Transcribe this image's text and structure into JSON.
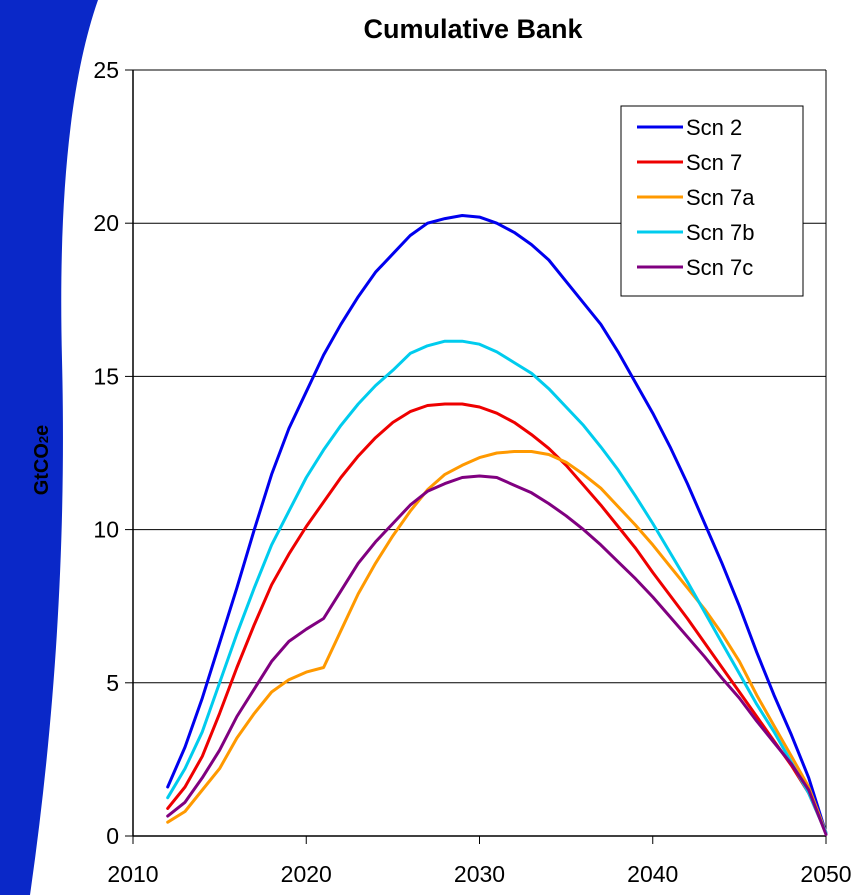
{
  "chart_data": {
    "type": "line",
    "title": "Cumulative Bank",
    "xlabel": "",
    "ylabel": "GtCO2e",
    "ylabel_main": "GtCO",
    "ylabel_sub": "2",
    "ylabel_tail": "e",
    "xlim": [
      2010,
      2050
    ],
    "ylim": [
      0,
      25
    ],
    "xticks": [
      2010,
      2020,
      2030,
      2040,
      2050
    ],
    "yticks": [
      0,
      5,
      10,
      15,
      20,
      25
    ],
    "grid": true,
    "legend_position": "top-right",
    "x": [
      2012,
      2013,
      2014,
      2015,
      2016,
      2017,
      2018,
      2019,
      2020,
      2021,
      2022,
      2023,
      2024,
      2025,
      2026,
      2027,
      2028,
      2029,
      2030,
      2031,
      2032,
      2033,
      2034,
      2035,
      2036,
      2037,
      2038,
      2039,
      2040,
      2041,
      2042,
      2043,
      2044,
      2045,
      2046,
      2047,
      2048,
      2049,
      2050
    ],
    "series": [
      {
        "name": "Scn 2",
        "color": "#0000ee",
        "values": [
          1.6,
          2.9,
          4.5,
          6.3,
          8.1,
          10.0,
          11.8,
          13.3,
          14.5,
          15.7,
          16.7,
          17.6,
          18.4,
          19.0,
          19.6,
          20.0,
          20.15,
          20.25,
          20.2,
          20.0,
          19.7,
          19.3,
          18.8,
          18.1,
          17.4,
          16.7,
          15.8,
          14.8,
          13.8,
          12.7,
          11.5,
          10.2,
          8.9,
          7.5,
          6.0,
          4.6,
          3.3,
          1.9,
          0.1
        ]
      },
      {
        "name": "Scn 7",
        "color": "#ee0000",
        "values": [
          0.9,
          1.6,
          2.6,
          4.0,
          5.5,
          6.9,
          8.2,
          9.2,
          10.1,
          10.9,
          11.7,
          12.4,
          13.0,
          13.5,
          13.85,
          14.05,
          14.1,
          14.1,
          14.0,
          13.8,
          13.5,
          13.1,
          12.65,
          12.1,
          11.45,
          10.8,
          10.1,
          9.4,
          8.6,
          7.85,
          7.1,
          6.3,
          5.5,
          4.7,
          3.9,
          3.1,
          2.3,
          1.4,
          0.1
        ]
      },
      {
        "name": "Scn 7a",
        "color": "#ff9900",
        "values": [
          0.45,
          0.8,
          1.5,
          2.2,
          3.2,
          4.0,
          4.7,
          5.1,
          5.35,
          5.5,
          6.7,
          7.9,
          8.9,
          9.8,
          10.6,
          11.3,
          11.8,
          12.1,
          12.35,
          12.5,
          12.55,
          12.55,
          12.45,
          12.2,
          11.8,
          11.35,
          10.75,
          10.15,
          9.5,
          8.8,
          8.1,
          7.4,
          6.6,
          5.7,
          4.6,
          3.6,
          2.6,
          1.6,
          0.1
        ]
      },
      {
        "name": "Scn 7b",
        "color": "#00ccee",
        "values": [
          1.25,
          2.2,
          3.4,
          5.0,
          6.6,
          8.1,
          9.5,
          10.6,
          11.7,
          12.6,
          13.4,
          14.1,
          14.7,
          15.2,
          15.75,
          16.0,
          16.15,
          16.15,
          16.05,
          15.8,
          15.45,
          15.1,
          14.6,
          14.0,
          13.4,
          12.7,
          11.95,
          11.1,
          10.2,
          9.25,
          8.3,
          7.3,
          6.3,
          5.3,
          4.3,
          3.4,
          2.4,
          1.4,
          0.1
        ]
      },
      {
        "name": "Scn 7c",
        "color": "#800080",
        "values": [
          0.65,
          1.1,
          1.9,
          2.8,
          3.9,
          4.8,
          5.7,
          6.35,
          6.75,
          7.1,
          8.0,
          8.9,
          9.6,
          10.2,
          10.8,
          11.25,
          11.5,
          11.7,
          11.75,
          11.7,
          11.45,
          11.2,
          10.85,
          10.45,
          10.0,
          9.5,
          8.95,
          8.4,
          7.8,
          7.15,
          6.5,
          5.85,
          5.15,
          4.5,
          3.75,
          3.05,
          2.35,
          1.5,
          0.05
        ]
      }
    ]
  }
}
